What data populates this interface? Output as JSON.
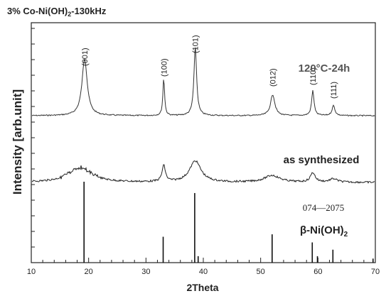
{
  "chart_data": {
    "type": "line",
    "title_main": "3% Co-Ni(OH)",
    "title_sub": "2",
    "title_tail": "-130kHz",
    "xlabel": "2Theta",
    "ylabel": "Intensity [arb.unit]",
    "xlim": [
      10,
      70
    ],
    "xticks": [
      "10",
      "20",
      "30",
      "40",
      "50",
      "60",
      "70"
    ],
    "grid": false,
    "series": [
      {
        "name": "120°C-24h",
        "peaks": [
          {
            "hkl": "(001)",
            "x": 19.3,
            "h": 0.73
          },
          {
            "hkl": "(100)",
            "x": 33.1,
            "h": 0.48
          },
          {
            "hkl": "(101)",
            "x": 38.6,
            "h": 0.88
          },
          {
            "hkl": "(012)",
            "x": 52.1,
            "h": 0.27
          },
          {
            "hkl": "(110)",
            "x": 59.1,
            "h": 0.32
          },
          {
            "hkl": "(111)",
            "x": 62.7,
            "h": 0.13
          }
        ]
      },
      {
        "name": "as synthesized",
        "peaks": [
          {
            "x": 18.5,
            "h": 0.35
          },
          {
            "x": 33.1,
            "h": 0.38
          },
          {
            "x": 38.6,
            "h": 0.5
          },
          {
            "x": 52.0,
            "h": 0.16
          },
          {
            "x": 59.1,
            "h": 0.22
          },
          {
            "x": 62.7,
            "h": 0.08
          }
        ]
      }
    ],
    "reference": {
      "card": "074—2075",
      "phase_main": "β-Ni(OH)",
      "phase_sub": "2",
      "lines": [
        {
          "x": 19.2,
          "h": 1.0
        },
        {
          "x": 33.0,
          "h": 0.32
        },
        {
          "x": 38.5,
          "h": 0.86
        },
        {
          "x": 39.1,
          "h": 0.08
        },
        {
          "x": 52.0,
          "h": 0.35
        },
        {
          "x": 59.0,
          "h": 0.25
        },
        {
          "x": 59.9,
          "h": 0.08
        },
        {
          "x": 62.6,
          "h": 0.16
        },
        {
          "x": 69.6,
          "h": 0.05
        }
      ]
    }
  }
}
